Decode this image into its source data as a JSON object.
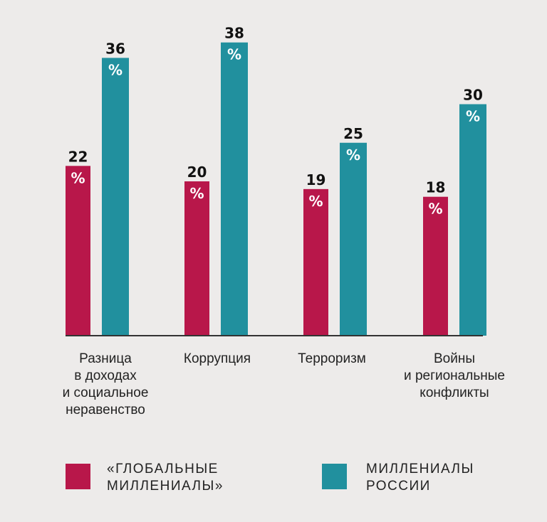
{
  "chart_data": {
    "type": "bar",
    "categories": [
      [
        "Разница",
        "в доходах",
        "и социальное",
        "неравенство"
      ],
      [
        "Коррупция"
      ],
      [
        "Терроризм"
      ],
      [
        "Войны",
        "и региональные",
        "конфликты"
      ]
    ],
    "series": [
      {
        "name": [
          "«ГЛОБАЛЬНЫЕ",
          "МИЛЛЕНИАЛЫ»"
        ],
        "color": "#b8174a",
        "values": [
          22,
          20,
          19,
          18
        ]
      },
      {
        "name": [
          "МИЛЛЕНИАЛЫ",
          "РОССИИ"
        ],
        "color": "#21909e",
        "values": [
          36,
          38,
          25,
          30
        ]
      }
    ],
    "unit": "%",
    "ylim": [
      0,
      42
    ],
    "title": "",
    "xlabel": "",
    "ylabel": "",
    "grid": false,
    "legend": "bottom"
  },
  "colors": {
    "axis": "#333333",
    "background": "#edebea"
  }
}
